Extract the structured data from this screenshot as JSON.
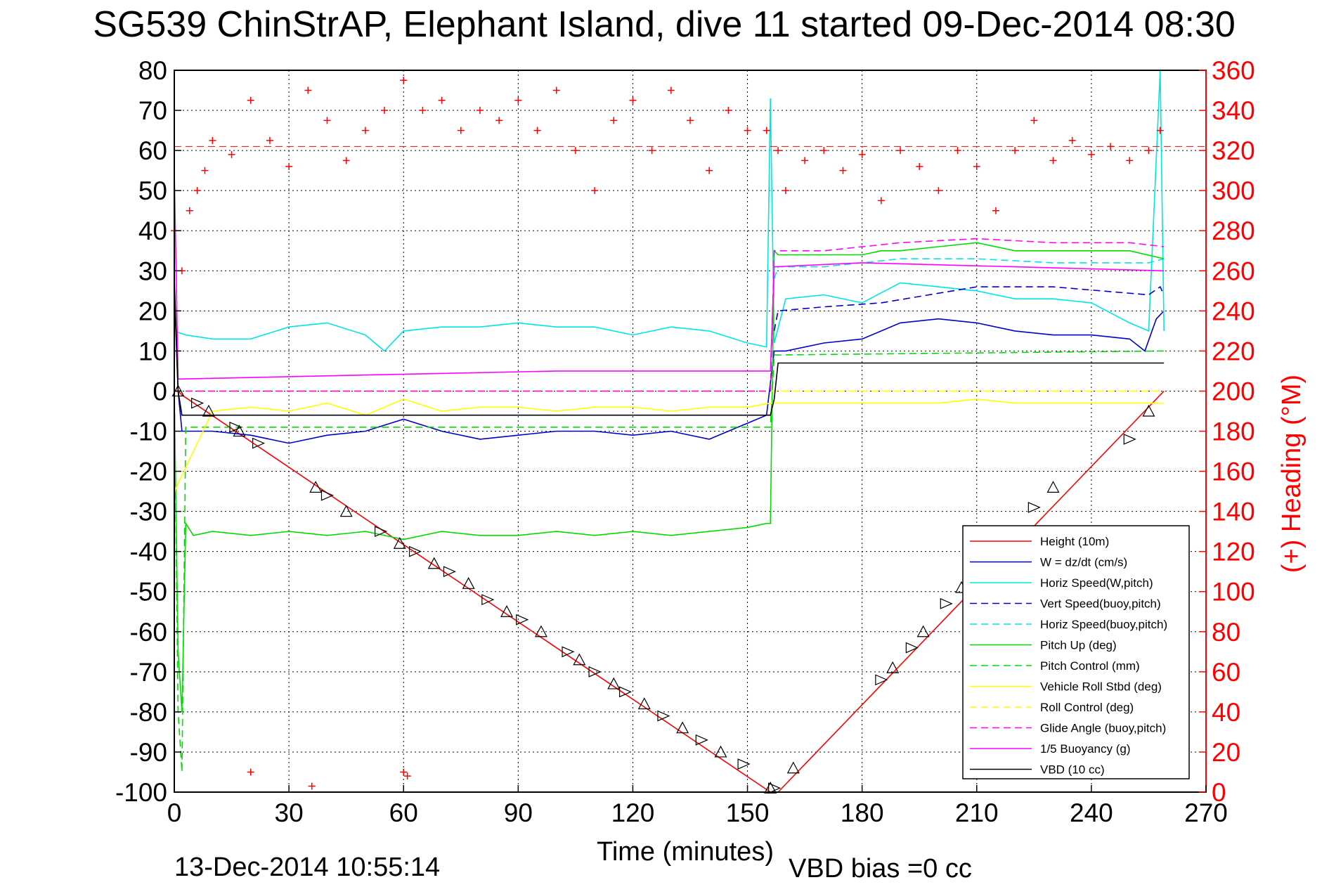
{
  "chart_data": {
    "type": "line",
    "title": "SG539 ChinStrAP, Elephant Island, dive 11 started 09-Dec-2014 08:30",
    "xlabel": "Time (minutes)",
    "ylabel_right": "(+) Heading (°M)",
    "xlim": [
      0,
      270
    ],
    "ylim": [
      -100,
      80
    ],
    "ylim_right": [
      0,
      360
    ],
    "x_ticks": [
      0,
      30,
      60,
      90,
      120,
      150,
      180,
      210,
      240,
      270
    ],
    "y_ticks": [
      80,
      70,
      60,
      50,
      40,
      30,
      20,
      10,
      0,
      -10,
      -20,
      -30,
      -40,
      -50,
      -60,
      -70,
      -80,
      -90,
      -100
    ],
    "y_right_ticks": [
      360,
      340,
      320,
      300,
      280,
      260,
      240,
      220,
      200,
      180,
      160,
      140,
      120,
      100,
      80,
      60,
      40,
      20,
      0
    ],
    "grid": true,
    "legend_position": "lower-right",
    "footer_left": "13-Dec-2014 10:55:14",
    "footer_right": "VBD bias =0 cc",
    "colors": {
      "red": "#ff0000",
      "blue": "#0000cc",
      "cyan": "#00e5e5",
      "green": "#00dd00",
      "yellow": "#ffff00",
      "magenta": "#ff00ff",
      "black": "#000000"
    },
    "series": [
      {
        "name": "Height (10m)",
        "color": "#ff0000",
        "style": "solid",
        "x": [
          0,
          1,
          2,
          156,
          158,
          259
        ],
        "y": [
          0,
          0,
          -1,
          -100,
          -100,
          0
        ]
      },
      {
        "name": "W = dz/dt (cm/s)",
        "color": "#0000cc",
        "style": "solid",
        "x": [
          0,
          1,
          2,
          10,
          20,
          30,
          40,
          50,
          60,
          70,
          80,
          90,
          100,
          110,
          120,
          130,
          140,
          150,
          155,
          157,
          160,
          170,
          180,
          190,
          200,
          210,
          220,
          230,
          240,
          250,
          254,
          257,
          259
        ],
        "y": [
          25,
          0,
          -10,
          -10,
          -11,
          -13,
          -11,
          -10,
          -7,
          -10,
          -12,
          -11,
          -10,
          -10,
          -11,
          -10,
          -12,
          -8,
          -6,
          10,
          10,
          12,
          13,
          17,
          18,
          17,
          15,
          14,
          14,
          13,
          10,
          18,
          20
        ]
      },
      {
        "name": "Horiz Speed(W,pitch)",
        "color": "#00e5e5",
        "style": "solid",
        "x": [
          0,
          3,
          10,
          20,
          30,
          40,
          50,
          55,
          60,
          70,
          80,
          90,
          100,
          110,
          120,
          130,
          140,
          150,
          155,
          156,
          157,
          160,
          170,
          180,
          190,
          200,
          210,
          220,
          230,
          240,
          250,
          255,
          258,
          259
        ],
        "y": [
          15,
          14,
          13,
          13,
          16,
          17,
          14,
          10,
          15,
          16,
          16,
          17,
          16,
          16,
          14,
          16,
          15,
          12,
          11,
          73,
          12,
          23,
          24,
          22,
          27,
          26,
          25,
          23,
          23,
          22,
          17,
          15,
          80,
          15
        ]
      },
      {
        "name": "Vert Speed(buoy,pitch)",
        "color": "#0000cc",
        "style": "dashed",
        "x": [
          157,
          158,
          170,
          185,
          210,
          230,
          255,
          258,
          259
        ],
        "y": [
          15,
          20,
          21,
          22,
          26,
          26,
          24,
          26,
          24
        ]
      },
      {
        "name": "Horiz Speed(buoy,pitch)",
        "color": "#00e5e5",
        "style": "dashed",
        "x": [
          157,
          158,
          170,
          190,
          210,
          230,
          255,
          259
        ],
        "y": [
          28,
          31,
          31,
          33,
          33,
          32,
          32,
          33
        ]
      },
      {
        "name": "Pitch Up (deg)",
        "color": "#00dd00",
        "style": "solid",
        "x": [
          0,
          1,
          2,
          3,
          5,
          10,
          20,
          30,
          40,
          50,
          60,
          70,
          80,
          90,
          100,
          110,
          120,
          130,
          140,
          150,
          155,
          156,
          157,
          158,
          170,
          180,
          185,
          190,
          200,
          210,
          220,
          230,
          240,
          250,
          259
        ],
        "y": [
          0,
          -65,
          -80,
          -33,
          -36,
          -35,
          -36,
          -35,
          -36,
          -35,
          -37,
          -35,
          -36,
          -36,
          -35,
          -36,
          -35,
          -36,
          -35,
          -34,
          -33,
          -33,
          35,
          34,
          34,
          34,
          35,
          35,
          36,
          37,
          35,
          35,
          35,
          35,
          33
        ]
      },
      {
        "name": "Pitch Control (mm)",
        "color": "#00dd00",
        "style": "dashed",
        "x": [
          0,
          1,
          2,
          3,
          156,
          157,
          259
        ],
        "y": [
          0,
          -80,
          -95,
          -9,
          -9,
          9,
          10
        ]
      },
      {
        "name": "Vehicle Roll Stbd (deg)",
        "color": "#ffff00",
        "style": "solid",
        "x": [
          0,
          10,
          20,
          30,
          40,
          50,
          60,
          70,
          80,
          90,
          100,
          110,
          120,
          130,
          140,
          150,
          156,
          157,
          170,
          180,
          190,
          200,
          210,
          220,
          230,
          240,
          250,
          259
        ],
        "y": [
          -25,
          -5,
          -4,
          -5,
          -3,
          -6,
          -2,
          -5,
          -4,
          -4,
          -5,
          -4,
          -4,
          -5,
          -4,
          -4,
          -3,
          -3,
          -3,
          -3,
          -3,
          -3,
          -2,
          -3,
          -3,
          -3,
          -3,
          -3
        ]
      },
      {
        "name": "Roll Control (deg)",
        "color": "#ffff00",
        "style": "dashed",
        "x": [
          0,
          259
        ],
        "y": [
          0,
          0
        ]
      },
      {
        "name": "Glide Angle (buoy,pitch)",
        "color": "#ff00ff",
        "style": "dashed",
        "x": [
          0,
          156,
          157,
          170,
          190,
          210,
          230,
          250,
          259
        ],
        "y": [
          0,
          0,
          35,
          35,
          37,
          38,
          37,
          37,
          36
        ]
      },
      {
        "name": "1/5 Buoyancy (g)",
        "color": "#ff00ff",
        "style": "solid",
        "x": [
          0,
          1,
          50,
          100,
          156,
          157,
          180,
          220,
          259
        ],
        "y": [
          55,
          3,
          4,
          5,
          5,
          31,
          32,
          31,
          30
        ]
      },
      {
        "name": "VBD (10 cc)",
        "color": "#000000",
        "style": "solid",
        "x": [
          0,
          1,
          2,
          156,
          157,
          158,
          200,
          259
        ],
        "y": [
          28,
          0,
          -6,
          -6,
          -2,
          7,
          7,
          7
        ]
      }
    ],
    "heading_series": {
      "name": "(+) Heading (°M)",
      "color": "#ff0000",
      "marker": "plus",
      "x": [
        0,
        2,
        4,
        6,
        8,
        10,
        15,
        20,
        25,
        30,
        35,
        40,
        45,
        50,
        55,
        60,
        65,
        70,
        75,
        80,
        85,
        90,
        95,
        100,
        105,
        110,
        115,
        120,
        125,
        130,
        135,
        140,
        145,
        150,
        155,
        158,
        160,
        165,
        170,
        175,
        180,
        185,
        190,
        195,
        200,
        205,
        210,
        215,
        220,
        225,
        230,
        235,
        240,
        245,
        250,
        255,
        258
      ],
      "y": [
        280,
        260,
        290,
        300,
        310,
        325,
        318,
        345,
        325,
        312,
        350,
        335,
        315,
        330,
        340,
        355,
        340,
        345,
        330,
        340,
        335,
        345,
        330,
        350,
        320,
        300,
        335,
        345,
        320,
        350,
        335,
        310,
        340,
        330,
        330,
        320,
        300,
        315,
        320,
        310,
        318,
        295,
        320,
        312,
        300,
        320,
        312,
        290,
        320,
        335,
        315,
        325,
        318,
        322,
        315,
        320,
        330
      ],
      "outliers_x": [
        20,
        36,
        60,
        61
      ],
      "outliers_y": [
        10,
        3,
        10,
        8
      ]
    },
    "dive_markers": {
      "x": [
        1,
        6,
        9,
        16,
        17,
        22,
        37,
        40,
        45,
        54,
        59,
        63,
        68,
        72,
        77,
        82,
        87,
        91,
        96,
        103,
        106,
        110,
        115,
        118,
        123,
        128,
        133,
        138,
        143,
        149,
        156,
        157,
        162,
        185,
        188,
        193,
        196,
        202,
        206,
        225,
        230,
        250,
        255
      ],
      "y": [
        0,
        -3,
        -5,
        -9,
        -10,
        -13,
        -24,
        -26,
        -30,
        -35,
        -38,
        -40,
        -43,
        -45,
        -48,
        -52,
        -55,
        -57,
        -60,
        -65,
        -67,
        -70,
        -73,
        -75,
        -78,
        -81,
        -84,
        -87,
        -90,
        -93,
        -99,
        -99,
        -94,
        -72,
        -69,
        -64,
        -60,
        -53,
        -49,
        -29,
        -24,
        -12,
        -5
      ]
    },
    "legend": [
      {
        "label": "Height (10m)",
        "color": "#ff0000",
        "style": "solid"
      },
      {
        "label": "W = dz/dt (cm/s)",
        "color": "#0000cc",
        "style": "solid"
      },
      {
        "label": "Horiz Speed(W,pitch)",
        "color": "#00e5e5",
        "style": "solid"
      },
      {
        "label": "Vert Speed(buoy,pitch)",
        "color": "#0000cc",
        "style": "dashed"
      },
      {
        "label": "Horiz Speed(buoy,pitch)",
        "color": "#00e5e5",
        "style": "dashed"
      },
      {
        "label": "Pitch Up (deg)",
        "color": "#00dd00",
        "style": "solid"
      },
      {
        "label": "Pitch Control (mm)",
        "color": "#00dd00",
        "style": "dashed"
      },
      {
        "label": "Vehicle Roll Stbd (deg)",
        "color": "#ffff00",
        "style": "solid"
      },
      {
        "label": "Roll Control (deg)",
        "color": "#ffff00",
        "style": "dashed"
      },
      {
        "label": "Glide Angle (buoy,pitch)",
        "color": "#ff00ff",
        "style": "dashed"
      },
      {
        "label": "1/5 Buoyancy (g)",
        "color": "#ff00ff",
        "style": "solid"
      },
      {
        "label": "VBD (10 cc)",
        "color": "#000000",
        "style": "solid"
      }
    ]
  }
}
